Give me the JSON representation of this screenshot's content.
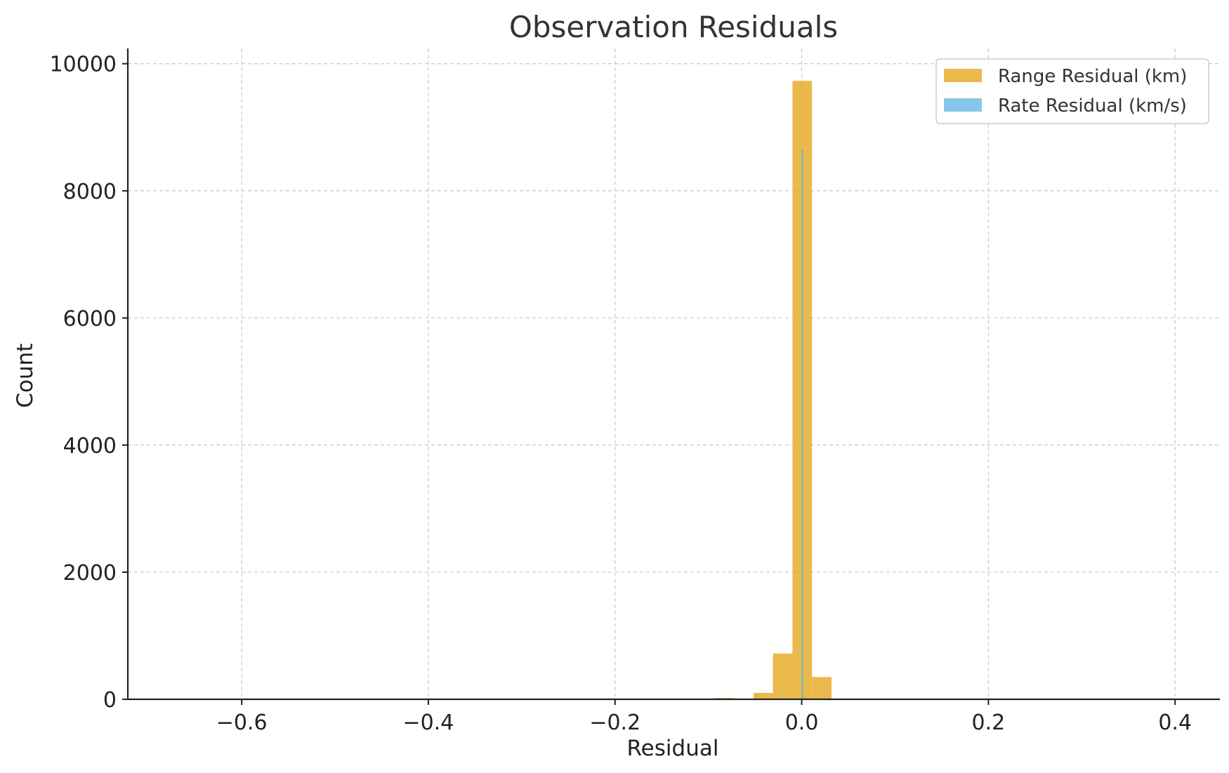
{
  "chart_data": {
    "type": "bar",
    "title": "Observation Residuals",
    "xlabel": "Residual",
    "ylabel": "Count",
    "xlim": [
      -0.722,
      0.448
    ],
    "ylim": [
      0,
      10240
    ],
    "x_ticks": [
      -0.6,
      -0.4,
      -0.2,
      0.0,
      0.2,
      0.4
    ],
    "x_tick_labels": [
      "−0.6",
      "−0.4",
      "−0.2",
      "0.0",
      "0.2",
      "0.4"
    ],
    "y_ticks": [
      0,
      2000,
      4000,
      6000,
      8000,
      10000
    ],
    "y_tick_labels": [
      "0",
      "2000",
      "4000",
      "6000",
      "8000",
      "10000"
    ],
    "grid": true,
    "legend_position": "top-right",
    "series": [
      {
        "name": "Range Residual (km)",
        "color": "#E8AD2C",
        "opacity": 0.85,
        "bins": [
          {
            "x0": -0.0935,
            "x1": -0.0726,
            "count": 20
          },
          {
            "x0": -0.0517,
            "x1": -0.0308,
            "count": 100
          },
          {
            "x0": -0.0308,
            "x1": -0.0099,
            "count": 720
          },
          {
            "x0": -0.0099,
            "x1": 0.011,
            "count": 9730
          },
          {
            "x0": 0.011,
            "x1": 0.0319,
            "count": 350
          }
        ]
      },
      {
        "name": "Rate Residual (km/s)",
        "color": "#5DB3E4",
        "opacity": 0.75,
        "bins": [
          {
            "x0": 0.0,
            "x1": 0.0018,
            "count": 8650
          }
        ]
      }
    ]
  }
}
